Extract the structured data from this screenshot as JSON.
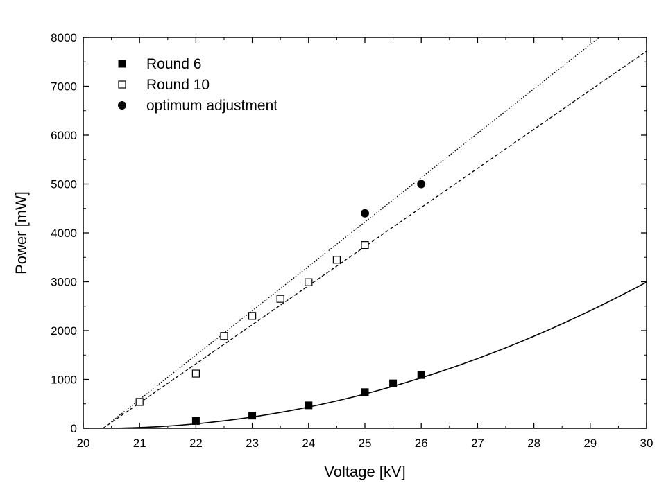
{
  "chart_data": {
    "type": "scatter",
    "xlabel": "Voltage [kV]",
    "ylabel": "Power [mW]",
    "xlim": [
      20,
      30
    ],
    "ylim": [
      0,
      8000
    ],
    "xticks": [
      20,
      21,
      22,
      23,
      24,
      25,
      26,
      27,
      28,
      29,
      30
    ],
    "yticks": [
      0,
      1000,
      2000,
      3000,
      4000,
      5000,
      6000,
      7000,
      8000
    ],
    "grid": false,
    "legend_position": "top-left",
    "series": [
      {
        "name": "Round 6",
        "marker": "filled-square",
        "color": "#000000",
        "points": [
          [
            22,
            150
          ],
          [
            23,
            260
          ],
          [
            24,
            470
          ],
          [
            25,
            740
          ],
          [
            25.5,
            920
          ],
          [
            26,
            1090
          ]
        ]
      },
      {
        "name": "Round 10",
        "marker": "open-square",
        "color": "#000000",
        "points": [
          [
            21,
            540
          ],
          [
            22,
            1120
          ],
          [
            22.5,
            1890
          ],
          [
            23,
            2300
          ],
          [
            23.5,
            2650
          ],
          [
            24,
            2990
          ],
          [
            24.5,
            3450
          ],
          [
            25,
            3750
          ]
        ]
      },
      {
        "name": "optimum adjustment",
        "marker": "filled-circle",
        "color": "#000000",
        "points": [
          [
            25,
            4400
          ],
          [
            26,
            5000
          ]
        ]
      }
    ],
    "fits": [
      {
        "style": "solid",
        "kind": "quadratic",
        "x0": 20.3,
        "a": 31.8,
        "from": 20.3,
        "to": 30
      },
      {
        "style": "dashed",
        "kind": "linear",
        "x0": 20.35,
        "slope": 800,
        "from": 20.35,
        "to": 30
      },
      {
        "style": "dotted",
        "kind": "linear",
        "x0": 20.35,
        "slope": 908,
        "from": 20.35,
        "to": 30
      }
    ]
  }
}
